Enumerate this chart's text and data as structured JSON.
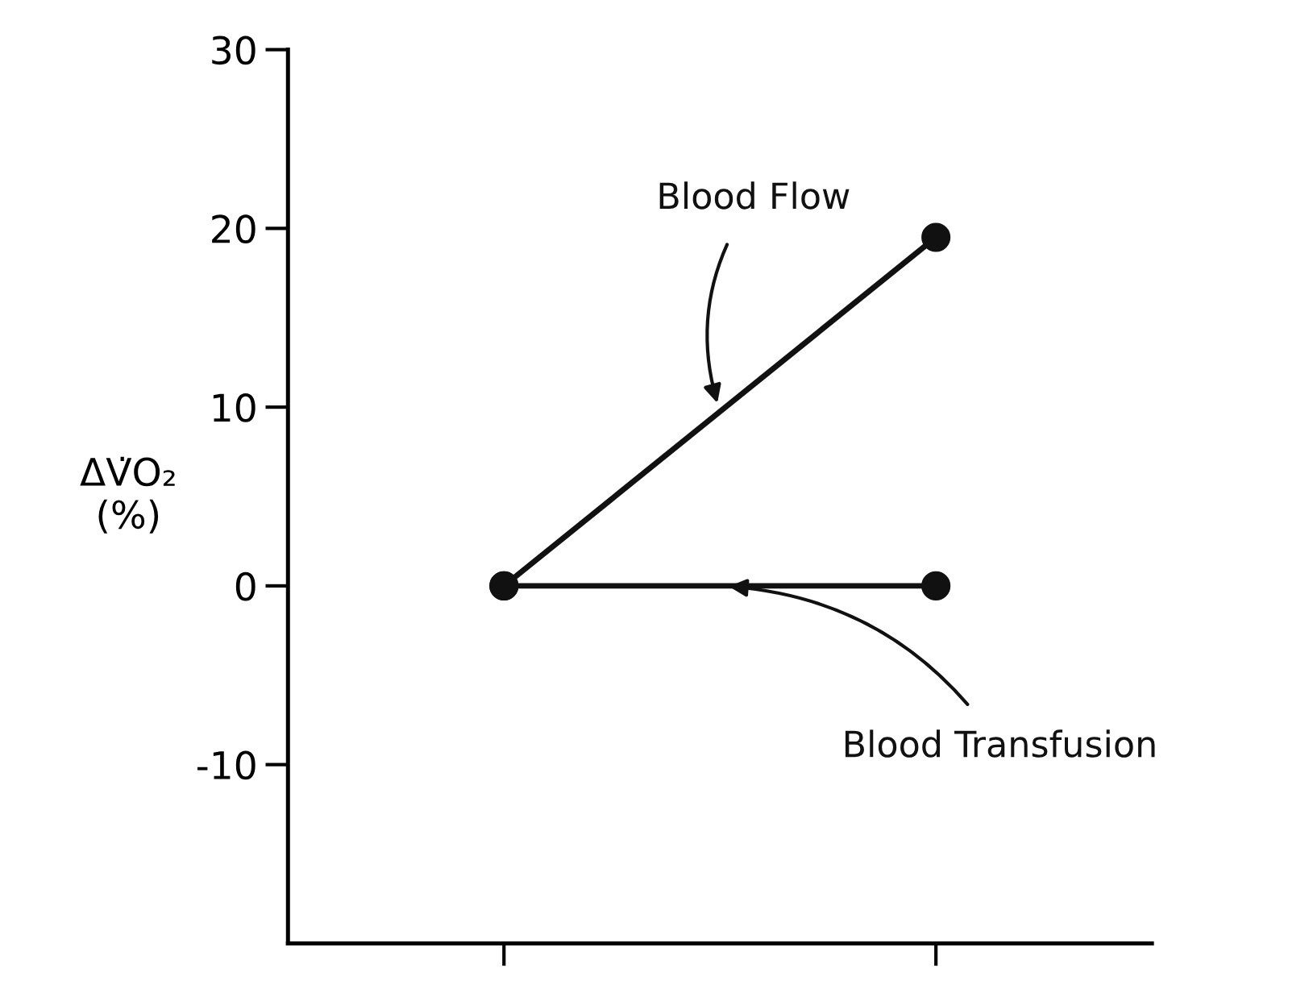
{
  "chart_data": {
    "type": "line",
    "ylabel": "ΔV̇O₂\n(%)",
    "categories": [
      null,
      null
    ],
    "series": [
      {
        "name": "Blood Flow",
        "color": "#111111",
        "values": [
          0,
          19.5
        ]
      },
      {
        "name": "Blood Transfusion",
        "color": "#111111",
        "values": [
          0,
          0
        ]
      }
    ],
    "ylim": [
      -20,
      30
    ],
    "yticks": [
      30,
      20,
      10,
      0,
      -10
    ],
    "marker": "circle",
    "line_style": "solid",
    "grid": false,
    "legend": false
  }
}
